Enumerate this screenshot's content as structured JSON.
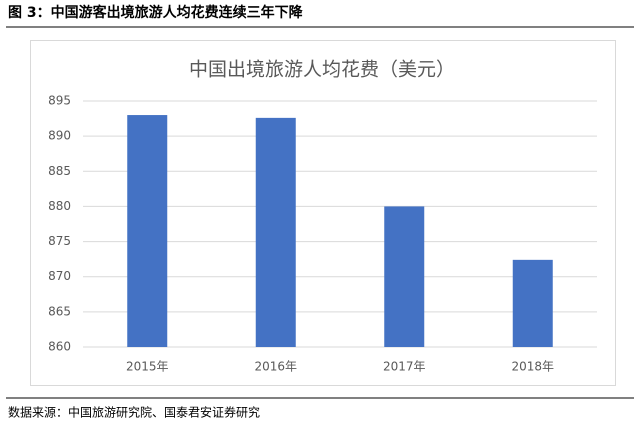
{
  "caption": "图 3：中国游客出境旅游人均花费连续三年下降",
  "source": "数据来源：中国旅游研究院、国泰君安证券研究",
  "chart_data": {
    "type": "bar",
    "title": "中国出境旅游人均花费（美元）",
    "categories": [
      "2015年",
      "2016年",
      "2017年",
      "2018年"
    ],
    "values": [
      893.0,
      892.6,
      880.0,
      872.4
    ],
    "color": "#4472c4",
    "ylim": [
      860,
      895
    ],
    "yticks": [
      860,
      865,
      870,
      875,
      880,
      885,
      890,
      895
    ],
    "grid": true
  }
}
